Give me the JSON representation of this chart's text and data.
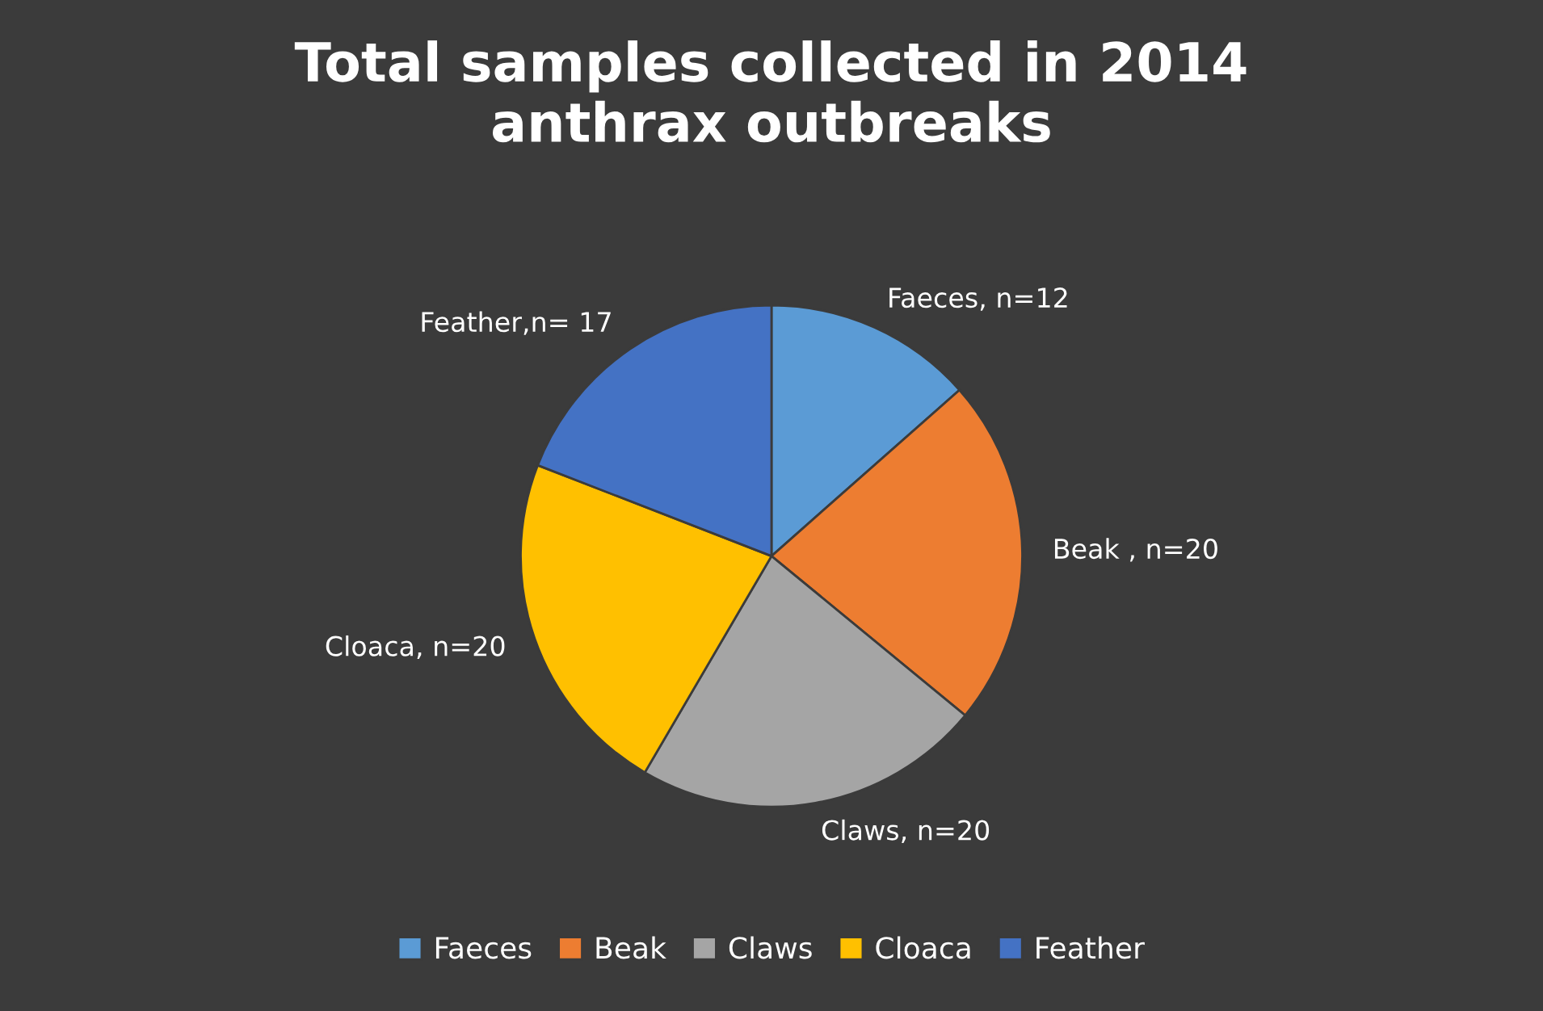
{
  "chart_data": {
    "type": "pie",
    "title": "Total samples collected in 2014\nanthrax outbreaks",
    "categories": [
      "Faeces",
      "Beak",
      "Claws",
      "Cloaca",
      "Feather"
    ],
    "values": [
      12,
      20,
      20,
      20,
      17
    ],
    "colors": [
      "#5b9bd5",
      "#ed7d31",
      "#a5a5a5",
      "#ffc000",
      "#4472c4"
    ],
    "value_labels": [
      "Faeces, n=12",
      "Beak , n=20",
      "Claws, n=20",
      "Cloaca, n=20",
      "Feather,n= 17"
    ],
    "legend": "bottom"
  }
}
